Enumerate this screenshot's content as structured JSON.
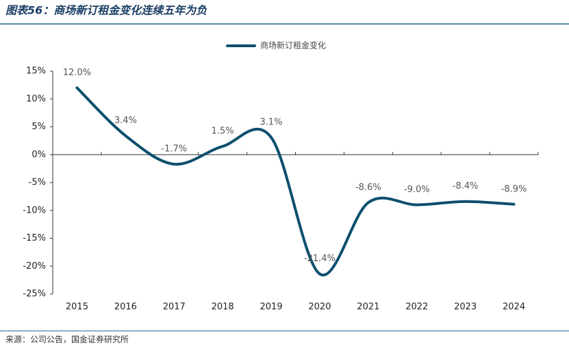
{
  "chart_data": {
    "type": "line",
    "title": "图表56：商场新订租金变化连续五年为负",
    "source": "来源：公司公告，国金证券研究所",
    "categories": [
      "2015",
      "2016",
      "2017",
      "2018",
      "2019",
      "2020",
      "2021",
      "2022",
      "2023",
      "2024"
    ],
    "series": [
      {
        "name": "商场新订租金变化",
        "color": "#0d4f6e",
        "values": [
          12.0,
          3.4,
          -1.7,
          1.5,
          3.1,
          -21.4,
          -8.6,
          -9.0,
          -8.4,
          -8.9
        ],
        "value_labels": [
          "12.0%",
          "3.4%",
          "-1.7%",
          "1.5%",
          "3.1%",
          "-21.4%",
          "-8.6%",
          "-9.0%",
          "-8.4%",
          "-8.9%"
        ]
      }
    ],
    "ylim": [
      -25,
      15
    ],
    "yticks": [
      {
        "value": -25,
        "label": "-25%"
      },
      {
        "value": -20,
        "label": "-20%"
      },
      {
        "value": -15,
        "label": "-15%"
      },
      {
        "value": -10,
        "label": "-10%"
      },
      {
        "value": -5,
        "label": "-5%"
      },
      {
        "value": 0,
        "label": "0%"
      },
      {
        "value": 5,
        "label": "5%"
      },
      {
        "value": 10,
        "label": "10%"
      },
      {
        "value": 15,
        "label": "15%"
      }
    ],
    "legend": "top",
    "smooth": true
  }
}
